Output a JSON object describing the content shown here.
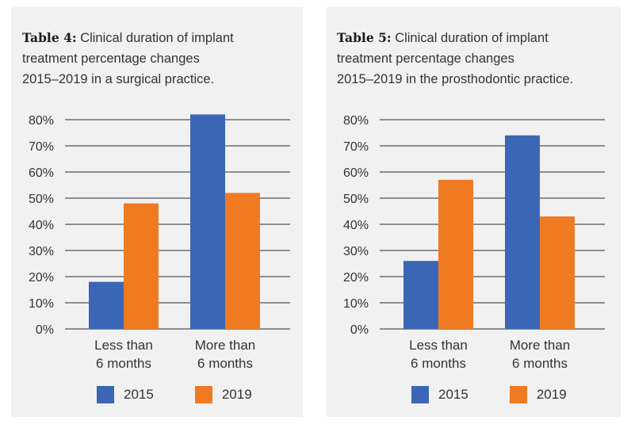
{
  "colors": {
    "series_2015": "#3a66b5",
    "series_2019": "#ef7a22",
    "grid": "#2b2b2b",
    "panel_bg": "#f1f1f2"
  },
  "chart_data": [
    {
      "type": "bar",
      "caption_label": "Table 4:",
      "caption_text": "Clinical duration of implant treatment percentage changes 2015–2019 in a surgical practice.",
      "caption_lines": [
        "Clinical duration of implant",
        "treatment percentage changes",
        "2015–2019 in a surgical practice."
      ],
      "categories": [
        "Less than 6 months",
        "More than 6 months"
      ],
      "category_lines": [
        [
          "Less than",
          "6 months"
        ],
        [
          "More than",
          "6 months"
        ]
      ],
      "series": [
        {
          "name": "2015",
          "values": [
            18,
            82
          ]
        },
        {
          "name": "2019",
          "values": [
            48,
            52
          ]
        }
      ],
      "ylim": [
        0,
        80
      ],
      "yticks": [
        "0%",
        "10%",
        "20%",
        "30%",
        "40%",
        "50%",
        "60%",
        "70%",
        "80%"
      ],
      "grid": true,
      "legend": "bottom"
    },
    {
      "type": "bar",
      "caption_label": "Table 5:",
      "caption_text": "Clinical duration of implant treatment percentage changes 2015–2019 in the prosthodontic practice.",
      "caption_lines": [
        "Clinical duration of implant",
        "treatment percentage changes",
        "2015–2019 in the prosthodontic practice."
      ],
      "categories": [
        "Less than 6 months",
        "More than 6 months"
      ],
      "category_lines": [
        [
          "Less than",
          "6 months"
        ],
        [
          "More than",
          "6 months"
        ]
      ],
      "series": [
        {
          "name": "2015",
          "values": [
            26,
            74
          ]
        },
        {
          "name": "2019",
          "values": [
            57,
            43
          ]
        }
      ],
      "ylim": [
        0,
        80
      ],
      "yticks": [
        "0%",
        "10%",
        "20%",
        "30%",
        "40%",
        "50%",
        "60%",
        "70%",
        "80%"
      ],
      "grid": true,
      "legend": "bottom"
    }
  ]
}
